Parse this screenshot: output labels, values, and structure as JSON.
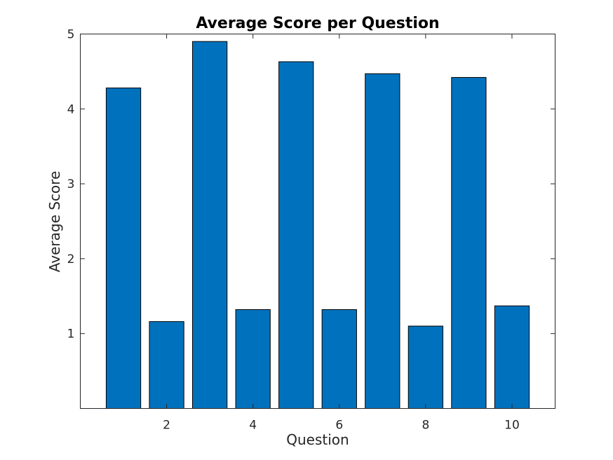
{
  "chart_data": {
    "type": "bar",
    "title": "Average Score per Question",
    "xlabel": "Question",
    "ylabel": "Average Score",
    "x": [
      1,
      2,
      3,
      4,
      5,
      6,
      7,
      8,
      9,
      10
    ],
    "values": [
      4.28,
      1.16,
      4.9,
      1.32,
      4.63,
      1.32,
      4.47,
      1.1,
      4.42,
      1.37
    ],
    "xlim": [
      0,
      11
    ],
    "ylim": [
      0,
      5
    ],
    "xticks": [
      2,
      4,
      6,
      8,
      10
    ],
    "yticks": [
      1,
      2,
      3,
      4,
      5
    ],
    "bar_color": "#0072BD",
    "grid": false,
    "legend": "none"
  }
}
